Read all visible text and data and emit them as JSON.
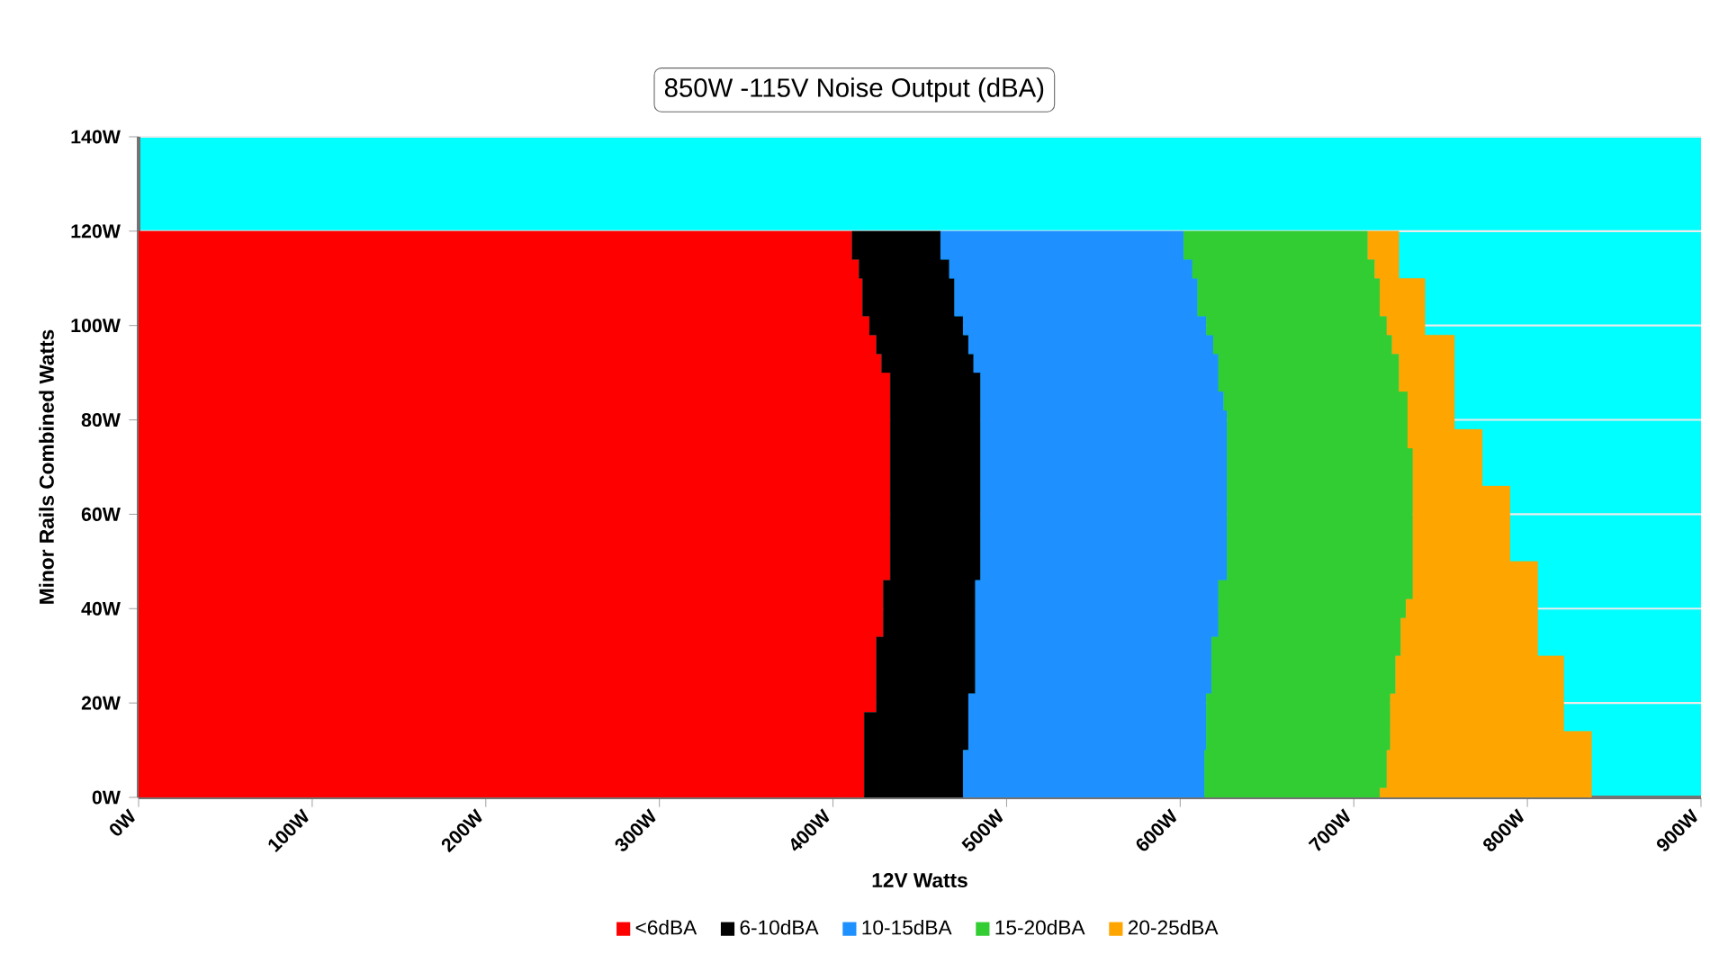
{
  "chart_data": {
    "type": "area",
    "orientation": "horizontal",
    "stacked": true,
    "bands": [
      {
        "axis": "y",
        "from": 0,
        "to": 140,
        "color": "#00ffff"
      }
    ],
    "title": "850W -115V Noise Output (dBA)",
    "xlabel": "12V Watts",
    "ylabel": "Minor Rails Combined Watts",
    "x": [
      0,
      4,
      8,
      12,
      16,
      20,
      24,
      28,
      32,
      36,
      40,
      44,
      48,
      52,
      56,
      60,
      64,
      68,
      72,
      76,
      80,
      84,
      88,
      92,
      96,
      100,
      104,
      108,
      112,
      116,
      120
    ],
    "series": [
      {
        "name": "<6dBA",
        "color": "#ff0000",
        "values": [
          418,
          418,
          418,
          418,
          418,
          425,
          425,
          425,
          425,
          429,
          429,
          429,
          433,
          433,
          433,
          433,
          433,
          433,
          433,
          433,
          433,
          433,
          433,
          428,
          425,
          421,
          417,
          417,
          415,
          411,
          411
        ]
      },
      {
        "name": "6-10dBA",
        "color": "#000000",
        "values": [
          57,
          57,
          57,
          60,
          60,
          53,
          57,
          57,
          57,
          53,
          53,
          53,
          52,
          52,
          52,
          52,
          52,
          52,
          52,
          52,
          52,
          52,
          52,
          53,
          53,
          54,
          53,
          53,
          52,
          51,
          51
        ]
      },
      {
        "name": "10-15dBA",
        "color": "#1e90ff",
        "values": [
          139,
          139,
          139,
          137,
          137,
          137,
          136,
          136,
          136,
          140,
          140,
          140,
          142,
          142,
          142,
          142,
          142,
          142,
          142,
          142,
          142,
          140,
          137,
          141,
          141,
          140,
          140,
          140,
          140,
          140,
          140
        ]
      },
      {
        "name": "15-20dBA",
        "color": "#32cd32",
        "values": [
          101,
          105,
          105,
          106,
          106,
          106,
          106,
          106,
          109,
          105,
          108,
          112,
          107,
          107,
          107,
          107,
          107,
          107,
          107,
          104,
          104,
          106,
          104,
          104,
          103,
          104,
          105,
          105,
          105,
          106,
          106
        ]
      },
      {
        "name": "20-25dBA",
        "color": "#ffa500",
        "values": [
          122,
          118,
          118,
          116,
          100,
          100,
          97,
          97,
          79,
          79,
          76,
          72,
          72,
          56,
          56,
          56,
          56,
          40,
          40,
          43,
          27,
          27,
          32,
          32,
          36,
          22,
          26,
          26,
          14,
          18,
          18
        ]
      }
    ],
    "xlim": [
      0,
      900
    ],
    "ylim": [
      0,
      140
    ],
    "xticks": [
      {
        "value": 0,
        "label": "0W"
      },
      {
        "value": 100,
        "label": "100W"
      },
      {
        "value": 200,
        "label": "200W"
      },
      {
        "value": 300,
        "label": "300W"
      },
      {
        "value": 400,
        "label": "400W"
      },
      {
        "value": 500,
        "label": "500W"
      },
      {
        "value": 600,
        "label": "600W"
      },
      {
        "value": 700,
        "label": "700W"
      },
      {
        "value": 800,
        "label": "800W"
      },
      {
        "value": 900,
        "label": "900W"
      }
    ],
    "yticks": [
      {
        "value": 0,
        "label": "0W"
      },
      {
        "value": 20,
        "label": "20W"
      },
      {
        "value": 40,
        "label": "40W"
      },
      {
        "value": 60,
        "label": "60W"
      },
      {
        "value": 80,
        "label": "80W"
      },
      {
        "value": 100,
        "label": "100W"
      },
      {
        "value": 120,
        "label": "120W"
      },
      {
        "value": 140,
        "label": "140W"
      }
    ],
    "grid": "y",
    "legend": "bottom"
  }
}
